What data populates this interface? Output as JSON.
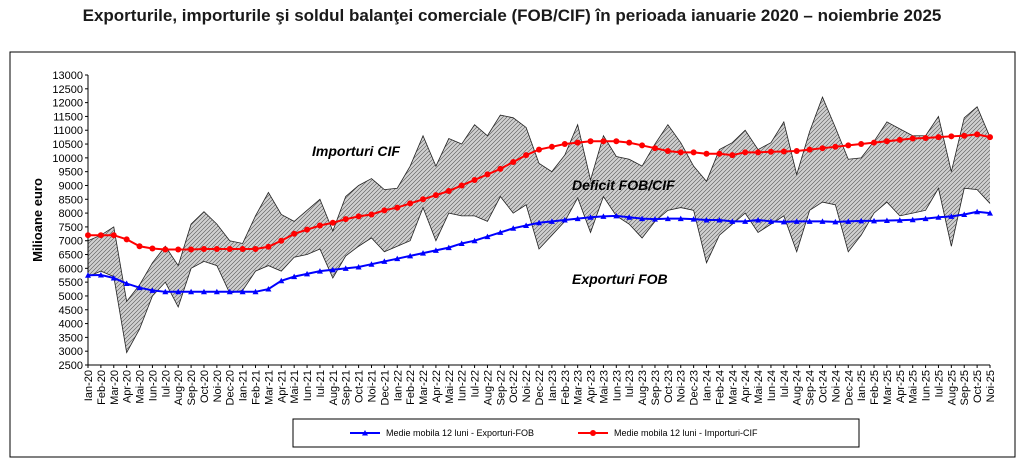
{
  "chart_data": {
    "type": "line",
    "title": "Exporturile, importurile şi soldul balanţei comerciale (FOB/CIF) în perioada ianuarie 2020 – noiembrie 2025",
    "ylabel": "Milioane  euro",
    "xlabel": "",
    "ylim": [
      2500,
      13000
    ],
    "ystep": 500,
    "grid": false,
    "legend_position": "bottom",
    "annotations": [
      "Importuri CIF",
      "Deficit FOB/CIF",
      "Exporturi FOB"
    ],
    "categories": [
      "Ian-20",
      "Feb-20",
      "Mar-20",
      "Apr-20",
      "Mai-20",
      "Iun-20",
      "Iul-20",
      "Aug-20",
      "Sep-20",
      "Oct-20",
      "Noi-20",
      "Dec-20",
      "Ian-21",
      "Feb-21",
      "Mar-21",
      "Apr-21",
      "Mai-21",
      "Iun-21",
      "Iul-21",
      "Aug-21",
      "Sep-21",
      "Oct-21",
      "Noi-21",
      "Dec-21",
      "Ian-22",
      "Feb-22",
      "Mar-22",
      "Apr-22",
      "Mai-22",
      "Iun-22",
      "Iul-22",
      "Aug-22",
      "Sep-22",
      "Oct-22",
      "Noi-22",
      "Dec-22",
      "Ian-23",
      "Feb-23",
      "Mar-23",
      "Apr-23",
      "Mai-23",
      "Iun-23",
      "Iul-23",
      "Aug-23",
      "Sep-23",
      "Oct-23",
      "Noi-23",
      "Dec-23",
      "Ian-24",
      "Feb-24",
      "Mar-24",
      "Apr-24",
      "Mai-24",
      "Iun-24",
      "Iul-24",
      "Aug-24",
      "Sep-24",
      "Oct-24",
      "Noi-24",
      "Dec-24",
      "Ian-25",
      "Feb-25",
      "Mar-25",
      "Apr-25",
      "Mai-25",
      "Iun-25",
      "Iul-25",
      "Aug-25",
      "Sep-25",
      "Oct-25",
      "Noi-25"
    ],
    "series": [
      {
        "name": "Importuri CIF",
        "color": "#000000",
        "values": [
          7000,
          7200,
          7500,
          4800,
          5400,
          6200,
          6800,
          6100,
          7600,
          8050,
          7600,
          7000,
          6900,
          7900,
          8750,
          7950,
          7700,
          8100,
          8500,
          7350,
          8600,
          9000,
          9250,
          8850,
          8900,
          9700,
          10800,
          9700,
          10700,
          10500,
          11200,
          10800,
          11550,
          11450,
          11100,
          9800,
          9500,
          10100,
          11200,
          9200,
          10800,
          10050,
          9950,
          9700,
          10500,
          11200,
          10550,
          9700,
          9150,
          10300,
          10550,
          11000,
          10300,
          10550,
          11300,
          9400,
          10950,
          12200,
          11100,
          9950,
          10000,
          10600,
          11300,
          11050,
          10800,
          10800,
          11500,
          9500,
          11450,
          11850,
          10750
        ]
      },
      {
        "name": "Exporturi FOB",
        "color": "#000000",
        "values": [
          5700,
          5900,
          5700,
          2950,
          3800,
          5000,
          5500,
          4600,
          6000,
          6250,
          6100,
          5100,
          5200,
          5900,
          6100,
          5900,
          6400,
          6500,
          6700,
          5650,
          6450,
          6800,
          7100,
          6600,
          6800,
          7000,
          8200,
          7000,
          8000,
          7900,
          7900,
          7700,
          8600,
          8000,
          8300,
          6700,
          7200,
          7700,
          8550,
          7300,
          8600,
          7900,
          7600,
          7100,
          7700,
          8100,
          8200,
          8100,
          6200,
          7200,
          7600,
          8000,
          7300,
          7600,
          7900,
          6600,
          8100,
          8400,
          8300,
          6600,
          7200,
          8000,
          8400,
          7900,
          8000,
          8100,
          8900,
          6800,
          8900,
          8850,
          8350
        ]
      },
      {
        "name": "Medie mobila 12 luni - Exporturi-FOB",
        "color": "#0000ff",
        "values": [
          5750,
          5760,
          5650,
          5450,
          5300,
          5200,
          5150,
          5150,
          5150,
          5150,
          5150,
          5150,
          5150,
          5150,
          5250,
          5550,
          5700,
          5800,
          5900,
          5950,
          6000,
          6050,
          6150,
          6250,
          6350,
          6450,
          6550,
          6650,
          6750,
          6900,
          7000,
          7150,
          7300,
          7450,
          7550,
          7650,
          7700,
          7750,
          7800,
          7850,
          7880,
          7900,
          7850,
          7800,
          7780,
          7800,
          7800,
          7780,
          7750,
          7750,
          7700,
          7700,
          7750,
          7700,
          7680,
          7700,
          7700,
          7700,
          7680,
          7700,
          7720,
          7720,
          7730,
          7740,
          7760,
          7800,
          7850,
          7880,
          7950,
          8050,
          8000
        ]
      },
      {
        "name": "Medie mobila 12 luni - Importuri-CIF",
        "color": "#ff0000",
        "values": [
          7200,
          7200,
          7200,
          7050,
          6800,
          6720,
          6680,
          6680,
          6680,
          6700,
          6700,
          6700,
          6700,
          6700,
          6780,
          7000,
          7250,
          7400,
          7550,
          7650,
          7780,
          7880,
          7950,
          8100,
          8200,
          8350,
          8500,
          8650,
          8800,
          9000,
          9200,
          9400,
          9600,
          9850,
          10100,
          10300,
          10400,
          10500,
          10550,
          10600,
          10600,
          10600,
          10550,
          10450,
          10350,
          10250,
          10200,
          10200,
          10150,
          10150,
          10100,
          10200,
          10200,
          10220,
          10230,
          10250,
          10300,
          10350,
          10400,
          10450,
          10500,
          10550,
          10600,
          10650,
          10700,
          10720,
          10750,
          10780,
          10800,
          10850,
          10750
        ]
      }
    ]
  }
}
